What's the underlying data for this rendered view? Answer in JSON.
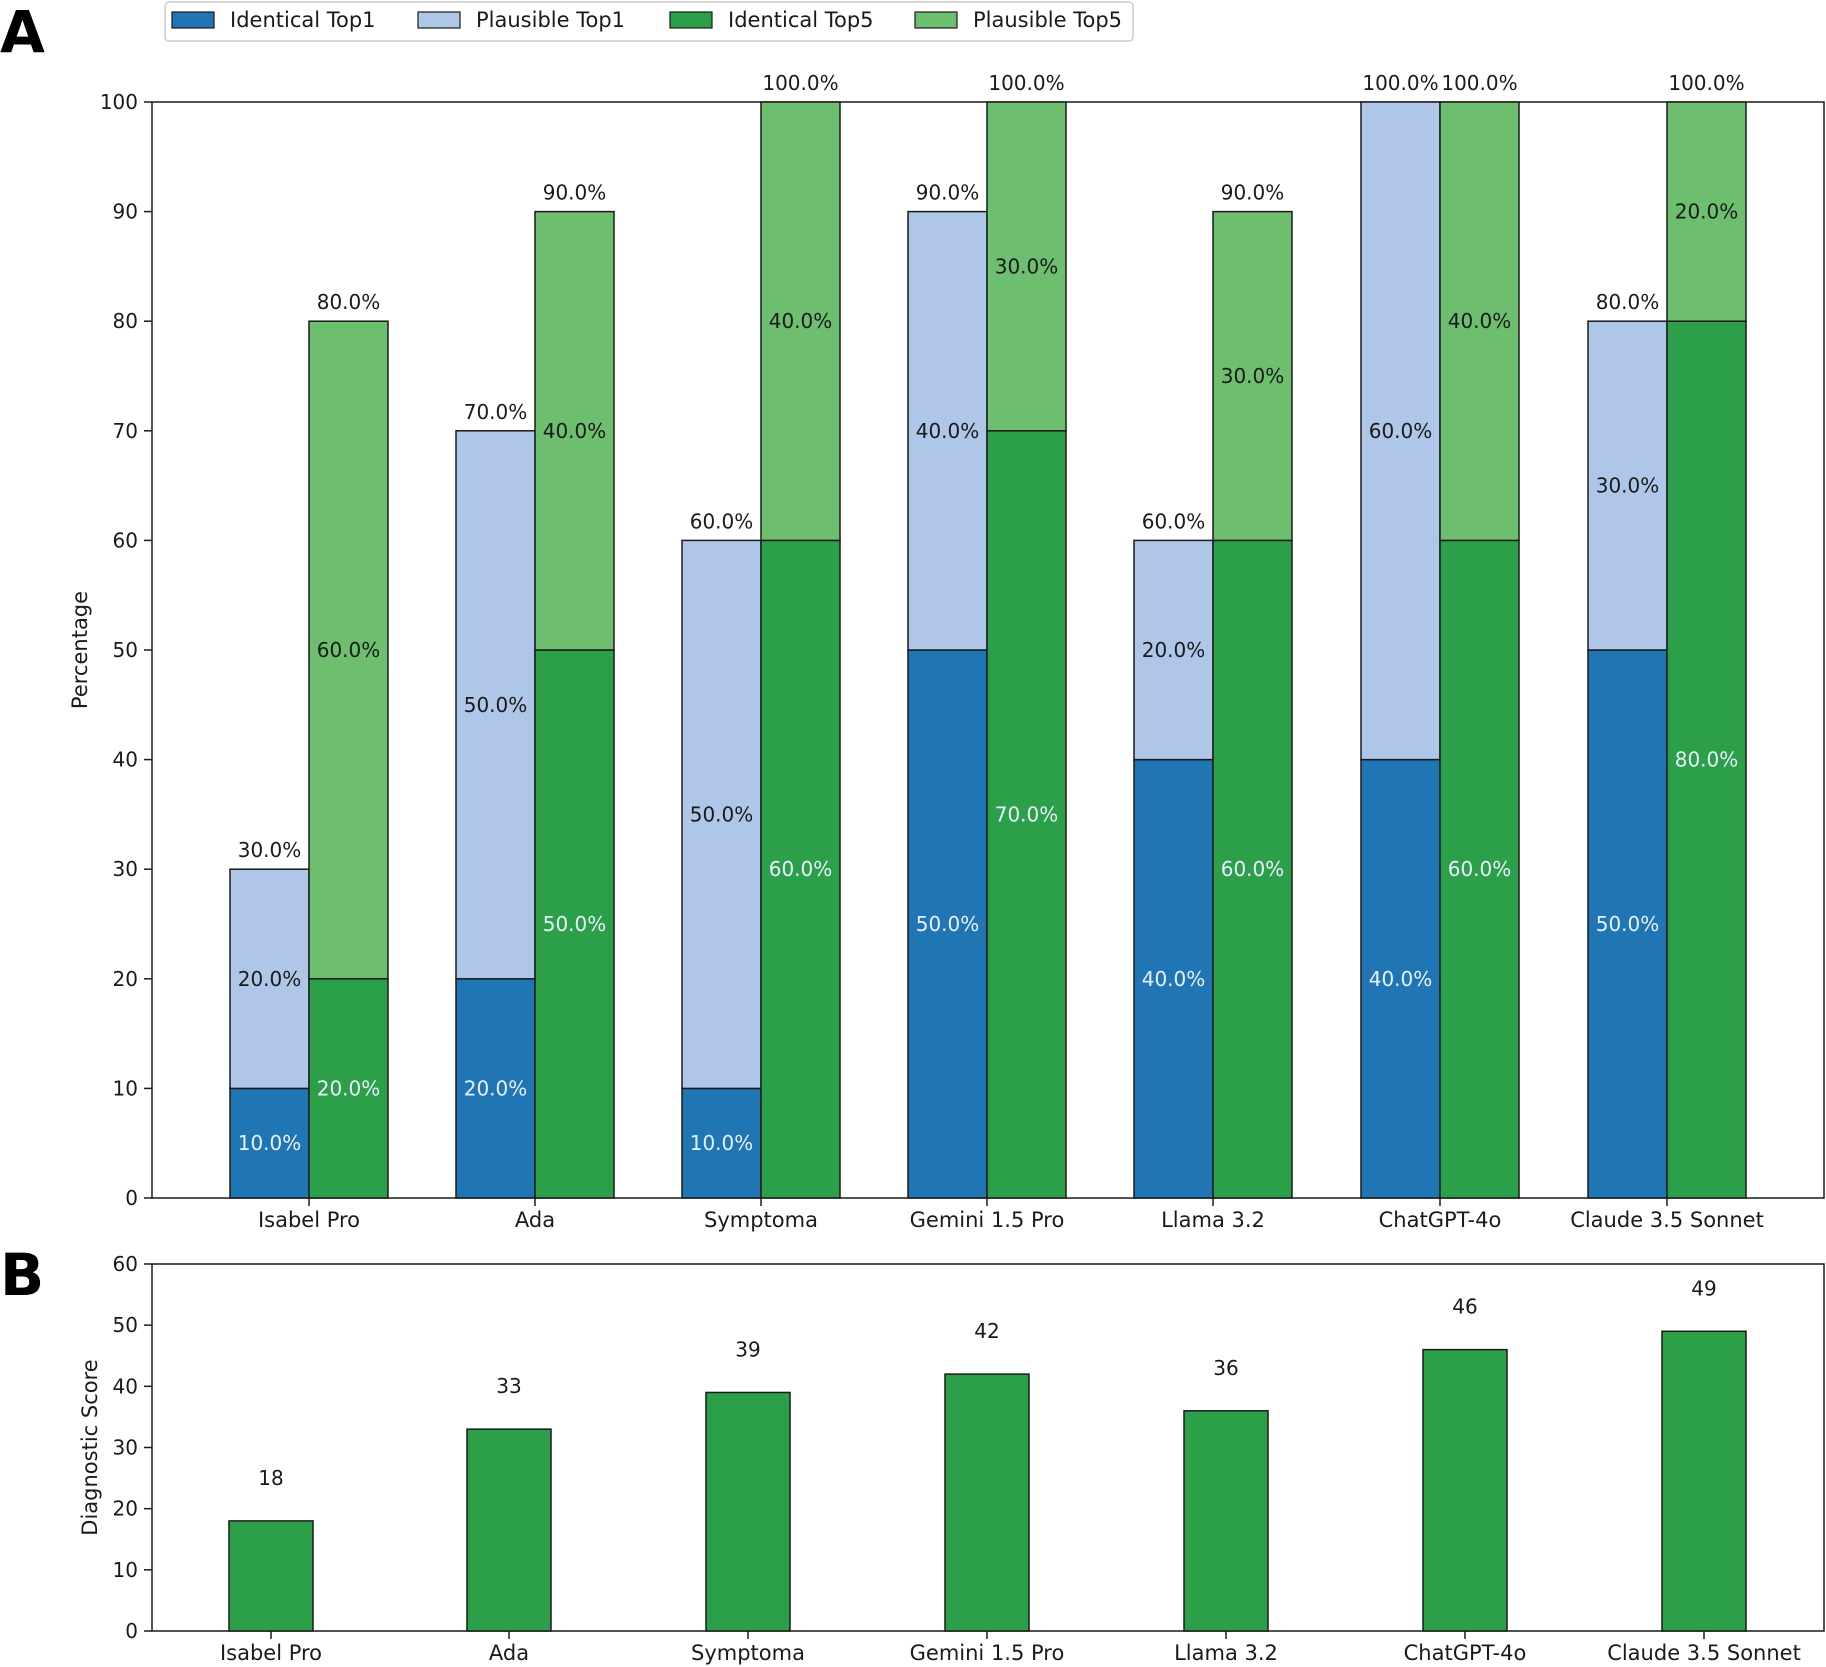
{
  "panels": {
    "a": {
      "letter": "A"
    },
    "b": {
      "letter": "B"
    }
  },
  "colors": {
    "identical_top1": "#2076b4",
    "plausible_top1": "#aec7e8",
    "identical_top5": "#2ca048",
    "plausible_top5": "#6dbf6f",
    "score_bar": "#2ca048",
    "edge": "#1a1a1a"
  },
  "chart_data": [
    {
      "type": "bar",
      "stacked": true,
      "grouped": true,
      "categories": [
        "Isabel Pro",
        "Ada",
        "Symptoma",
        "Gemini 1.5 Pro",
        "Llama 3.2",
        "ChatGPT-4o",
        "Claude 3.5 Sonnet"
      ],
      "series": [
        {
          "name": "Identical Top1",
          "group": "Top1",
          "values": [
            10,
            20,
            10,
            50,
            40,
            40,
            50
          ]
        },
        {
          "name": "Plausible Top1",
          "group": "Top1",
          "values": [
            20,
            50,
            50,
            40,
            20,
            60,
            30
          ]
        },
        {
          "name": "Identical Top5",
          "group": "Top5",
          "values": [
            20,
            50,
            60,
            70,
            60,
            60,
            80
          ]
        },
        {
          "name": "Plausible Top5",
          "group": "Top5",
          "values": [
            60,
            40,
            40,
            30,
            30,
            40,
            20
          ]
        }
      ],
      "totals": {
        "Top1": [
          30,
          70,
          60,
          90,
          60,
          100,
          80
        ],
        "Top5": [
          80,
          90,
          100,
          100,
          90,
          100,
          100
        ]
      },
      "title": "",
      "xlabel": "",
      "ylabel": "Percentage",
      "ylim": [
        0,
        100
      ],
      "yticks": [
        0,
        10,
        20,
        30,
        40,
        50,
        60,
        70,
        80,
        90,
        100
      ],
      "legend": "top-left, outside above plot",
      "grid": false
    },
    {
      "type": "bar",
      "categories": [
        "Isabel Pro",
        "Ada",
        "Symptoma",
        "Gemini 1.5 Pro",
        "Llama 3.2",
        "ChatGPT-4o",
        "Claude 3.5 Sonnet"
      ],
      "values": [
        18,
        33,
        39,
        42,
        36,
        46,
        49
      ],
      "title": "",
      "xlabel": "",
      "ylabel": "Diagnostic Score",
      "ylim": [
        0,
        60
      ],
      "yticks": [
        0,
        10,
        20,
        30,
        40,
        50,
        60
      ],
      "grid": false
    }
  ]
}
